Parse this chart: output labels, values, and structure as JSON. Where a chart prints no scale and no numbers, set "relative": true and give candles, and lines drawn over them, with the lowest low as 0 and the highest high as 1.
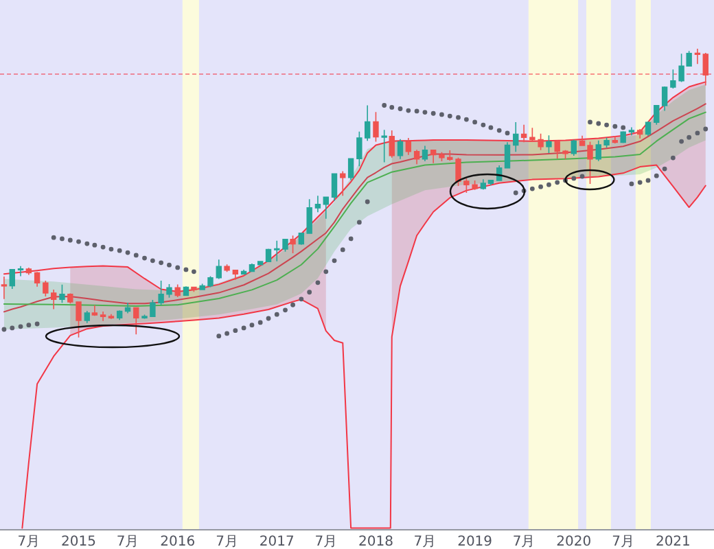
{
  "chart_data": {
    "type": "candlestick",
    "relative": true,
    "x": [
      "2014-04",
      "2014-05",
      "2014-06",
      "2014-07",
      "2014-08",
      "2014-09",
      "2014-10",
      "2014-11",
      "2014-12",
      "2015-01",
      "2015-02",
      "2015-03",
      "2015-04",
      "2015-05",
      "2015-06",
      "2015-07",
      "2015-08",
      "2015-09",
      "2015-10",
      "2015-11",
      "2015-12",
      "2016-01",
      "2016-02",
      "2016-03",
      "2016-04",
      "2016-05",
      "2016-06",
      "2016-07",
      "2016-08",
      "2016-09",
      "2016-10",
      "2016-11",
      "2016-12",
      "2017-01",
      "2017-02",
      "2017-03",
      "2017-04",
      "2017-05",
      "2017-06",
      "2017-07",
      "2017-08",
      "2017-09",
      "2017-10",
      "2017-11",
      "2017-12",
      "2018-01",
      "2018-02",
      "2018-03",
      "2018-04",
      "2018-05",
      "2018-06",
      "2018-07",
      "2018-08",
      "2018-09",
      "2018-10",
      "2018-11",
      "2018-12",
      "2019-01",
      "2019-02",
      "2019-03",
      "2019-04",
      "2019-05",
      "2019-06",
      "2019-07",
      "2019-08",
      "2019-09",
      "2019-10",
      "2019-11",
      "2019-12",
      "2020-01",
      "2020-02",
      "2020-03",
      "2020-04",
      "2020-05",
      "2020-06",
      "2020-07",
      "2020-08",
      "2020-09",
      "2020-10",
      "2020-11",
      "2020-12",
      "2021-01",
      "2021-02",
      "2021-03",
      "2021-04",
      "2021-05"
    ],
    "ohlc": [
      [
        0.182,
        0.211,
        0.133,
        0.179
      ],
      [
        0.179,
        0.236,
        0.168,
        0.235
      ],
      [
        0.235,
        0.247,
        0.212,
        0.237
      ],
      [
        0.237,
        0.242,
        0.217,
        0.224
      ],
      [
        0.224,
        0.227,
        0.176,
        0.189
      ],
      [
        0.189,
        0.197,
        0.142,
        0.154
      ],
      [
        0.154,
        0.166,
        0.098,
        0.132
      ],
      [
        0.132,
        0.183,
        0.12,
        0.15
      ],
      [
        0.15,
        0.153,
        0.118,
        0.123
      ],
      [
        0.123,
        0.124,
        0.0,
        0.059
      ],
      [
        0.059,
        0.092,
        0.05,
        0.085
      ],
      [
        0.085,
        0.112,
        0.075,
        0.078
      ],
      [
        0.078,
        0.09,
        0.057,
        0.073
      ],
      [
        0.073,
        0.081,
        0.064,
        0.068
      ],
      [
        0.068,
        0.094,
        0.061,
        0.091
      ],
      [
        0.091,
        0.121,
        0.084,
        0.103
      ],
      [
        0.103,
        0.104,
        0.011,
        0.068
      ],
      [
        0.068,
        0.079,
        0.065,
        0.073
      ],
      [
        0.073,
        0.13,
        0.072,
        0.12
      ],
      [
        0.12,
        0.197,
        0.112,
        0.15
      ],
      [
        0.15,
        0.185,
        0.138,
        0.172
      ],
      [
        0.172,
        0.184,
        0.14,
        0.146
      ],
      [
        0.146,
        0.177,
        0.145,
        0.174
      ],
      [
        0.174,
        0.176,
        0.158,
        0.166
      ],
      [
        0.166,
        0.186,
        0.165,
        0.179
      ],
      [
        0.179,
        0.212,
        0.174,
        0.207
      ],
      [
        0.207,
        0.27,
        0.203,
        0.246
      ],
      [
        0.246,
        0.253,
        0.227,
        0.233
      ],
      [
        0.233,
        0.234,
        0.2,
        0.22
      ],
      [
        0.22,
        0.235,
        0.218,
        0.229
      ],
      [
        0.229,
        0.256,
        0.228,
        0.252
      ],
      [
        0.252,
        0.265,
        0.25,
        0.263
      ],
      [
        0.263,
        0.307,
        0.261,
        0.305
      ],
      [
        0.305,
        0.335,
        0.264,
        0.306
      ],
      [
        0.306,
        0.341,
        0.297,
        0.34
      ],
      [
        0.34,
        0.353,
        0.292,
        0.324
      ],
      [
        0.324,
        0.362,
        0.321,
        0.361
      ],
      [
        0.361,
        0.479,
        0.36,
        0.449
      ],
      [
        0.449,
        0.491,
        0.434,
        0.461
      ],
      [
        0.461,
        0.488,
        0.411,
        0.486
      ],
      [
        0.486,
        0.568,
        0.473,
        0.567
      ],
      [
        0.567,
        0.576,
        0.491,
        0.554
      ],
      [
        0.554,
        0.62,
        0.545,
        0.619
      ],
      [
        0.619,
        0.713,
        0.593,
        0.691
      ],
      [
        0.691,
        0.804,
        0.681,
        0.747
      ],
      [
        0.747,
        0.781,
        0.678,
        0.695
      ],
      [
        0.695,
        0.719,
        0.607,
        0.696
      ],
      [
        0.696,
        0.717,
        0.623,
        0.63
      ],
      [
        0.63,
        0.687,
        0.618,
        0.678
      ],
      [
        0.678,
        0.691,
        0.632,
        0.644
      ],
      [
        0.644,
        0.65,
        0.6,
        0.618
      ],
      [
        0.618,
        0.664,
        0.61,
        0.649
      ],
      [
        0.649,
        0.65,
        0.604,
        0.633
      ],
      [
        0.633,
        0.642,
        0.61,
        0.623
      ],
      [
        0.623,
        0.648,
        0.612,
        0.617
      ],
      [
        0.617,
        0.623,
        0.525,
        0.541
      ],
      [
        0.541,
        0.55,
        0.501,
        0.529
      ],
      [
        0.529,
        0.544,
        0.511,
        0.516
      ],
      [
        0.516,
        0.548,
        0.512,
        0.534
      ],
      [
        0.534,
        0.546,
        0.527,
        0.544
      ],
      [
        0.544,
        0.596,
        0.543,
        0.587
      ],
      [
        0.587,
        0.676,
        0.587,
        0.666
      ],
      [
        0.666,
        0.746,
        0.643,
        0.704
      ],
      [
        0.704,
        0.737,
        0.676,
        0.693
      ],
      [
        0.693,
        0.726,
        0.68,
        0.685
      ],
      [
        0.685,
        0.706,
        0.649,
        0.661
      ],
      [
        0.661,
        0.7,
        0.639,
        0.678
      ],
      [
        0.678,
        0.683,
        0.62,
        0.645
      ],
      [
        0.645,
        0.649,
        0.618,
        0.637
      ],
      [
        0.637,
        0.685,
        0.629,
        0.68
      ],
      [
        0.68,
        0.699,
        0.664,
        0.665
      ],
      [
        0.665,
        0.678,
        0.532,
        0.618
      ],
      [
        0.618,
        0.682,
        0.611,
        0.667
      ],
      [
        0.667,
        0.692,
        0.657,
        0.682
      ],
      [
        0.682,
        0.698,
        0.672,
        0.676
      ],
      [
        0.676,
        0.714,
        0.673,
        0.712
      ],
      [
        0.712,
        0.728,
        0.7,
        0.717
      ],
      [
        0.717,
        0.722,
        0.689,
        0.704
      ],
      [
        0.704,
        0.748,
        0.698,
        0.745
      ],
      [
        0.745,
        0.805,
        0.737,
        0.803
      ],
      [
        0.803,
        0.869,
        0.785,
        0.867
      ],
      [
        0.867,
        0.928,
        0.862,
        0.889
      ],
      [
        0.889,
        0.983,
        0.885,
        0.94
      ],
      [
        0.94,
        0.992,
        0.94,
        0.984
      ],
      [
        0.984,
        1.0,
        0.947,
        0.981
      ],
      [
        0.981,
        0.986,
        0.873,
        0.909
      ]
    ],
    "colors": [
      "#ef5350",
      "#26a69a",
      "#26a69a",
      "#ef5350",
      "#ef5350",
      "#ef5350",
      "#ef5350",
      "#26a69a",
      "#ef5350",
      "#ef5350",
      "#26a69a",
      "#ef5350",
      "#ef5350",
      "#ef5350",
      "#26a69a",
      "#26a69a",
      "#ef5350",
      "#26a69a",
      "#26a69a",
      "#26a69a",
      "#26a69a",
      "#ef5350",
      "#26a69a",
      "#ef5350",
      "#26a69a",
      "#26a69a",
      "#26a69a",
      "#ef5350",
      "#ef5350",
      "#26a69a",
      "#26a69a",
      "#26a69a",
      "#26a69a",
      "#26a69a",
      "#26a69a",
      "#ef5350",
      "#26a69a",
      "#26a69a",
      "#26a69a",
      "#26a69a",
      "#26a69a",
      "#ef5350",
      "#26a69a",
      "#26a69a",
      "#26a69a",
      "#ef5350",
      "#26a69a",
      "#ef5350",
      "#26a69a",
      "#ef5350",
      "#ef5350",
      "#26a69a",
      "#ef5350",
      "#ef5350",
      "#ef5350",
      "#ef5350",
      "#ef5350",
      "#ef5350",
      "#26a69a",
      "#26a69a",
      "#26a69a",
      "#26a69a",
      "#26a69a",
      "#ef5350",
      "#ef5350",
      "#ef5350",
      "#26a69a",
      "#ef5350",
      "#ef5350",
      "#26a69a",
      "#ef5350",
      "#ef5350",
      "#26a69a",
      "#26a69a",
      "#ef5350",
      "#26a69a",
      "#26a69a",
      "#ef5350",
      "#26a69a",
      "#26a69a",
      "#26a69a",
      "#26a69a",
      "#26a69a",
      "#26a69a",
      "#ef5350",
      "#ef5350"
    ],
    "xlim": [
      "2014-03-17",
      "2021-06-01"
    ],
    "xticks": [
      {
        "value": "2014-07",
        "label": "7月"
      },
      {
        "value": "2015",
        "label": "2015"
      },
      {
        "value": "2015-07",
        "label": "7月"
      },
      {
        "value": "2016",
        "label": "2016"
      },
      {
        "value": "2016-07",
        "label": "7月"
      },
      {
        "value": "2017",
        "label": "2017"
      },
      {
        "value": "2017-07",
        "label": "7月"
      },
      {
        "value": "2018",
        "label": "2018"
      },
      {
        "value": "2018-07",
        "label": "7月"
      },
      {
        "value": "2019",
        "label": "2019"
      },
      {
        "value": "2019-07",
        "label": "7月"
      },
      {
        "value": "2020",
        "label": "2020"
      },
      {
        "value": "2020-07",
        "label": "7月"
      },
      {
        "value": "2021",
        "label": "2021"
      }
    ],
    "series": [
      {
        "type": "line",
        "color": "#cc4450",
        "x": [
          "2014-04",
          "2014-05",
          "2014-06",
          "2014-07",
          "2014-08",
          "2014-10",
          "2014-12",
          "2015-02",
          "2015-04",
          "2015-07",
          "2015-09",
          "2015-11",
          "2016-01",
          "2016-03",
          "2016-06",
          "2016-09",
          "2016-12",
          "2017-03",
          "2017-04",
          "2017-06",
          "2017-07",
          "2017-08",
          "2017-09",
          "2017-10",
          "2017-11",
          "2017-12",
          "2018-01",
          "2018-02",
          "2018-03",
          "2018-04",
          "2018-05",
          "2018-06",
          "2018-07",
          "2018-08",
          "2018-10",
          "2018-12",
          "2019-04",
          "2019-08",
          "2019-12",
          "2020-04",
          "2020-07",
          "2020-09",
          "2020-11",
          "2021-01",
          "2021-03",
          "2021-04",
          "2021-05"
        ],
        "values": [
          0.089,
          0.098,
          0.106,
          0.115,
          0.125,
          0.141,
          0.142,
          0.135,
          0.127,
          0.118,
          0.118,
          0.122,
          0.13,
          0.139,
          0.155,
          0.182,
          0.222,
          0.278,
          0.298,
          0.341,
          0.362,
          0.399,
          0.445,
          0.482,
          0.52,
          0.554,
          0.571,
          0.589,
          0.602,
          0.608,
          0.615,
          0.622,
          0.629,
          0.635,
          0.635,
          0.633,
          0.632,
          0.633,
          0.64,
          0.651,
          0.662,
          0.679,
          0.714,
          0.75,
          0.778,
          0.793,
          0.809
        ],
        "lower": [
          null,
          null,
          null,
          null,
          null,
          null,
          0.007,
          0.03,
          0.04,
          0.045,
          0.048,
          0.052,
          0.056,
          0.06,
          0.067,
          0.081,
          0.097,
          0.124,
          0.132,
          0.1,
          0.023,
          null,
          null,
          null,
          null,
          null,
          null,
          null,
          0.002,
          0.178,
          0.263,
          0.353,
          0.394,
          0.435,
          0.484,
          0.509,
          0.535,
          0.547,
          0.55,
          0.557,
          0.569,
          0.591,
          0.597,
          0.523,
          0.451,
          0.486,
          0.526
        ],
        "upper": [
          null,
          null,
          null,
          null,
          null,
          null,
          0.243,
          0.246,
          0.248,
          0.244,
          0.204,
          0.167,
          0.159,
          0.165,
          0.184,
          0.214,
          0.266,
          0.335,
          0.359,
          0.417,
          0.445,
          null,
          null,
          null,
          null,
          null,
          null,
          null,
          0.68,
          0.681,
          0.681,
          0.682,
          0.683,
          0.684,
          0.684,
          0.684,
          0.682,
          0.68,
          0.683,
          0.69,
          0.699,
          0.712,
          0.781,
          0.831,
          0.868,
          0.877,
          0.885
        ]
      },
      {
        "type": "line",
        "color": "#f23645",
        "x": [
          "2014-04",
          "2014-05",
          "2014-06",
          "2014-07",
          "2014-08",
          "2014-10",
          "2014-12",
          "2015-02",
          "2015-04",
          "2015-07",
          "2015-09",
          "2015-11",
          "2016-01",
          "2016-03",
          "2016-06",
          "2016-09",
          "2016-12",
          "2017-03",
          "2017-04",
          "2017-06",
          "2017-07",
          "2017-08",
          "2017-09",
          "2017-10",
          "2017-11",
          "2017-12",
          "2018-01",
          "2018-02",
          "2018-03",
          "2018-04",
          "2018-05",
          "2018-06",
          "2018-07",
          "2018-08",
          "2018-10",
          "2018-12",
          "2019-04",
          "2019-08",
          "2019-12",
          "2020-04",
          "2020-07",
          "2020-09",
          "2020-11",
          "2021-01",
          "2021-03",
          "2021-04",
          "2021-05"
        ],
        "values": [
          0.22,
          0.223,
          0.226,
          0.229,
          0.232,
          0.239,
          0.243,
          0.246,
          0.248,
          0.244,
          0.204,
          0.167,
          0.159,
          0.165,
          0.184,
          0.214,
          0.266,
          0.335,
          0.359,
          0.417,
          0.445,
          0.476,
          0.507,
          0.539,
          0.579,
          0.639,
          0.666,
          0.674,
          0.68,
          0.681,
          0.681,
          0.682,
          0.683,
          0.684,
          0.684,
          0.684,
          0.682,
          0.68,
          0.683,
          0.69,
          0.699,
          0.712,
          0.781,
          0.831,
          0.868,
          0.877,
          0.885
        ]
      },
      {
        "type": "line",
        "color": "#f23645",
        "x": [
          "2014-06-07",
          "2014-07",
          "2014-08",
          "2014-10",
          "2014-12",
          "2015-02",
          "2015-04",
          "2015-07",
          "2015-09",
          "2015-11",
          "2016-01",
          "2016-03",
          "2016-06",
          "2016-09",
          "2016-12",
          "2017-03",
          "2017-04",
          "2017-06",
          "2017-07",
          "2017-08",
          "2017-09",
          "2017-10",
          "2018-02-24",
          "2018-03",
          "2018-04",
          "2018-05",
          "2018-06",
          "2018-07",
          "2018-08",
          "2018-10",
          "2018-12",
          "2019-04",
          "2019-08",
          "2019-12",
          "2020-04",
          "2020-07",
          "2020-09",
          "2020-11",
          "2021-01",
          "2021-03",
          "2021-04",
          "2021-05"
        ],
        "values": [
          -0.66,
          -0.433,
          -0.161,
          -0.065,
          0.007,
          0.03,
          0.04,
          0.045,
          0.048,
          0.052,
          0.056,
          0.06,
          0.067,
          0.081,
          0.097,
          0.124,
          0.132,
          0.1,
          0.023,
          -0.01,
          -0.019,
          -0.66,
          -0.66,
          0.002,
          0.178,
          0.263,
          0.353,
          0.394,
          0.435,
          0.484,
          0.509,
          0.535,
          0.547,
          0.55,
          0.557,
          0.569,
          0.591,
          0.597,
          0.523,
          0.451,
          0.486,
          0.526
        ]
      },
      {
        "type": "line",
        "color": "#4caf50",
        "x": [
          "2014-04",
          "2014-10",
          "2015-03",
          "2015-08",
          "2016-01",
          "2016-06",
          "2016-10",
          "2017-01",
          "2017-04",
          "2017-06",
          "2017-08",
          "2017-10",
          "2017-12",
          "2018-03",
          "2018-07",
          "2018-12",
          "2019-06",
          "2019-12",
          "2020-06",
          "2020-09",
          "2020-11",
          "2021-01",
          "2021-03",
          "2021-05"
        ],
        "values": [
          0.116,
          0.114,
          0.112,
          0.109,
          0.113,
          0.135,
          0.165,
          0.199,
          0.252,
          0.307,
          0.384,
          0.465,
          0.537,
          0.573,
          0.597,
          0.607,
          0.612,
          0.618,
          0.626,
          0.634,
          0.68,
          0.72,
          0.758,
          0.78
        ],
        "lower": [
          0.028,
          0.034,
          0.043,
          0.051,
          0.064,
          0.08,
          0.099,
          0.115,
          0.152,
          0.205,
          0.298,
          0.376,
          0.42,
          0.462,
          0.51,
          0.53,
          0.542,
          0.553,
          0.56,
          0.565,
          0.588,
          0.621,
          0.658,
          0.683
        ],
        "upper": [
          0.203,
          0.194,
          0.181,
          0.167,
          0.162,
          0.189,
          0.23,
          0.283,
          0.351,
          0.408,
          0.469,
          0.553,
          0.653,
          0.684,
          0.684,
          0.683,
          0.682,
          0.682,
          0.691,
          0.702,
          0.771,
          0.819,
          0.857,
          0.876
        ]
      },
      {
        "type": "scatter",
        "color": "#5d606b",
        "marker": "circle",
        "x": [
          "2014-04",
          "2014-05",
          "2014-06",
          "2014-07",
          "2014-08",
          "2014-10",
          "2014-11",
          "2014-12",
          "2015-01",
          "2015-02",
          "2015-03",
          "2015-04",
          "2015-05",
          "2015-06",
          "2015-07",
          "2015-08",
          "2015-09",
          "2015-10",
          "2015-11",
          "2015-12",
          "2016-01",
          "2016-02",
          "2016-03",
          "2016-06",
          "2016-07",
          "2016-08",
          "2016-09",
          "2016-10",
          "2016-11",
          "2016-12",
          "2017-01",
          "2017-02",
          "2017-03",
          "2017-04",
          "2017-05",
          "2017-06",
          "2017-07",
          "2017-08",
          "2017-09",
          "2017-10",
          "2017-11",
          "2017-12",
          "2018-02",
          "2018-03",
          "2018-04",
          "2018-05",
          "2018-06",
          "2018-07",
          "2018-08",
          "2018-09",
          "2018-10",
          "2018-11",
          "2018-12",
          "2019-01",
          "2019-02",
          "2019-03",
          "2019-04",
          "2019-05",
          "2019-06",
          "2019-07",
          "2019-08",
          "2019-09",
          "2019-10",
          "2019-11",
          "2019-12",
          "2020-01",
          "2020-02",
          "2020-03",
          "2020-04",
          "2020-05",
          "2020-06",
          "2020-07",
          "2020-08",
          "2020-09",
          "2020-10",
          "2020-11",
          "2020-12",
          "2021-01",
          "2021-02",
          "2021-03",
          "2021-04",
          "2021-05"
        ],
        "values": [
          0.028,
          0.033,
          0.038,
          0.043,
          0.047,
          0.346,
          0.342,
          0.337,
          0.332,
          0.325,
          0.32,
          0.313,
          0.306,
          0.301,
          0.294,
          0.285,
          0.275,
          0.266,
          0.259,
          0.251,
          0.242,
          0.235,
          0.228,
          0.005,
          0.014,
          0.024,
          0.033,
          0.043,
          0.052,
          0.066,
          0.08,
          0.095,
          0.113,
          0.133,
          0.157,
          0.19,
          0.228,
          0.266,
          0.304,
          0.342,
          0.399,
          0.47,
          0.804,
          0.797,
          0.792,
          0.786,
          0.784,
          0.78,
          0.776,
          0.772,
          0.767,
          0.762,
          0.755,
          0.746,
          0.736,
          0.727,
          0.717,
          0.708,
          0.501,
          0.508,
          0.515,
          0.522,
          0.529,
          0.537,
          0.544,
          0.551,
          0.558,
          0.746,
          0.741,
          0.736,
          0.731,
          0.727,
          0.532,
          0.537,
          0.544,
          0.56,
          0.584,
          0.622,
          0.679,
          0.693,
          0.708,
          0.722
        ]
      }
    ],
    "ref_lines": [
      {
        "axis": "y",
        "value": 0.912,
        "color": "#f23645",
        "line_style": "dashed"
      }
    ],
    "bands": [
      {
        "axis": "x",
        "from": "2016-01-19",
        "to": "2016-03-20",
        "color": "#fcfbdc"
      },
      {
        "axis": "x",
        "from": "2019-07-18",
        "to": "2020-01-17",
        "color": "#fcfbdc"
      },
      {
        "axis": "x",
        "from": "2020-02-16",
        "to": "2020-05-17",
        "color": "#fcfbdc"
      },
      {
        "axis": "x",
        "from": "2020-08-16",
        "to": "2020-10-11",
        "color": "#fcfbdc"
      }
    ]
  }
}
